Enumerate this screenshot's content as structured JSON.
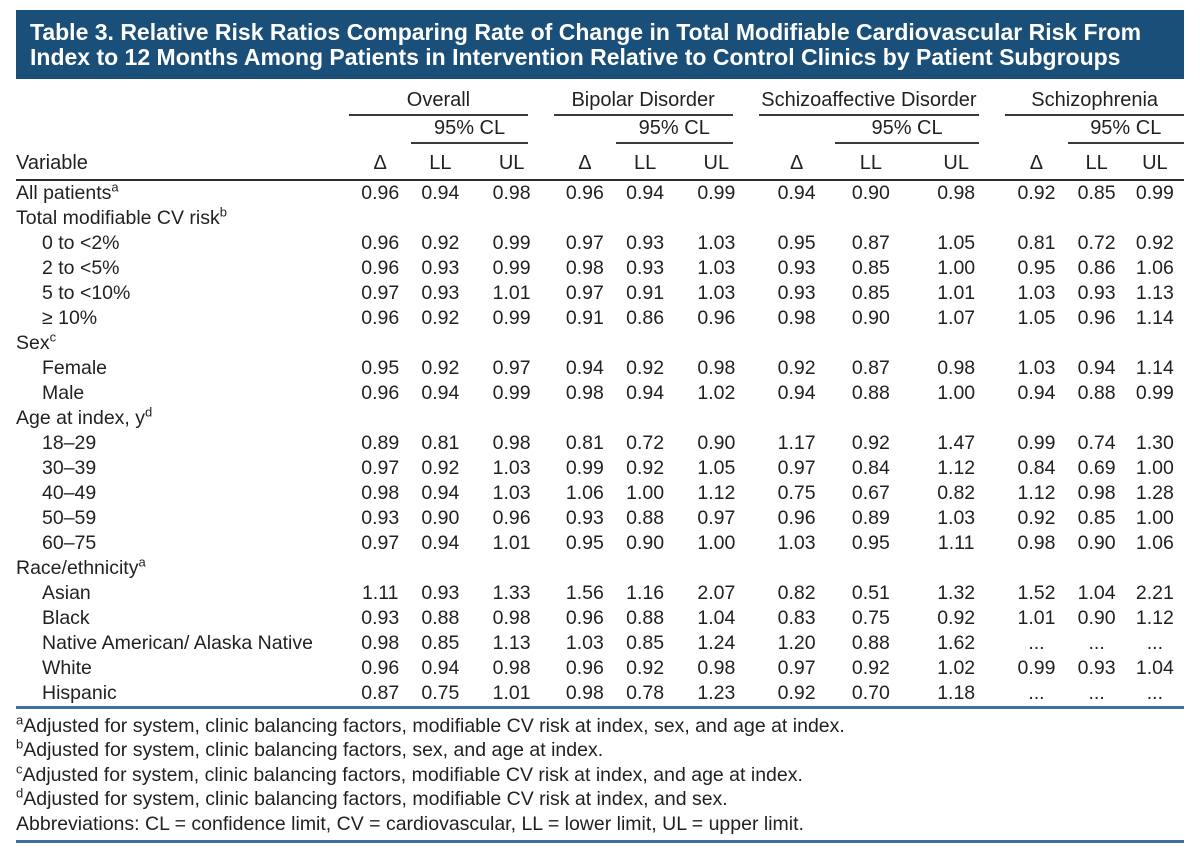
{
  "title": {
    "line1": "Table 3. Relative Risk Ratios Comparing Rate of Change in Total Modifiable Cardiovascular Risk From",
    "line2": "Index to 12 Months Among Patients in Intervention Relative to Control Clinics by Patient Subgroups"
  },
  "table": {
    "variable_header": "Variable",
    "groups": [
      "Overall",
      "Bipolar Disorder",
      "Schizoaffective Disorder",
      "Schizophrenia"
    ],
    "cl_header": "95% CL",
    "sub_headers": [
      "Δ",
      "LL",
      "UL"
    ],
    "rows": [
      {
        "label": "All patients",
        "sup": "a",
        "indent": false,
        "values": [
          "0.96",
          "0.94",
          "0.98",
          "0.96",
          "0.94",
          "0.99",
          "0.94",
          "0.90",
          "0.98",
          "0.92",
          "0.85",
          "0.99"
        ]
      },
      {
        "label": "Total modifiable CV risk",
        "sup": "b",
        "indent": false,
        "values": []
      },
      {
        "label": "0 to <2%",
        "sup": "",
        "indent": true,
        "values": [
          "0.96",
          "0.92",
          "0.99",
          "0.97",
          "0.93",
          "1.03",
          "0.95",
          "0.87",
          "1.05",
          "0.81",
          "0.72",
          "0.92"
        ]
      },
      {
        "label": "2 to <5%",
        "sup": "",
        "indent": true,
        "values": [
          "0.96",
          "0.93",
          "0.99",
          "0.98",
          "0.93",
          "1.03",
          "0.93",
          "0.85",
          "1.00",
          "0.95",
          "0.86",
          "1.06"
        ]
      },
      {
        "label": "5 to <10%",
        "sup": "",
        "indent": true,
        "values": [
          "0.97",
          "0.93",
          "1.01",
          "0.97",
          "0.91",
          "1.03",
          "0.93",
          "0.85",
          "1.01",
          "1.03",
          "0.93",
          "1.13"
        ]
      },
      {
        "label": "≥ 10%",
        "sup": "",
        "indent": true,
        "values": [
          "0.96",
          "0.92",
          "0.99",
          "0.91",
          "0.86",
          "0.96",
          "0.98",
          "0.90",
          "1.07",
          "1.05",
          "0.96",
          "1.14"
        ]
      },
      {
        "label": "Sex",
        "sup": "c",
        "indent": false,
        "values": []
      },
      {
        "label": "Female",
        "sup": "",
        "indent": true,
        "values": [
          "0.95",
          "0.92",
          "0.97",
          "0.94",
          "0.92",
          "0.98",
          "0.92",
          "0.87",
          "0.98",
          "1.03",
          "0.94",
          "1.14"
        ]
      },
      {
        "label": "Male",
        "sup": "",
        "indent": true,
        "values": [
          "0.96",
          "0.94",
          "0.99",
          "0.98",
          "0.94",
          "1.02",
          "0.94",
          "0.88",
          "1.00",
          "0.94",
          "0.88",
          "0.99"
        ]
      },
      {
        "label": "Age at index, y",
        "sup": "d",
        "indent": false,
        "values": []
      },
      {
        "label": "18–29",
        "sup": "",
        "indent": true,
        "values": [
          "0.89",
          "0.81",
          "0.98",
          "0.81",
          "0.72",
          "0.90",
          "1.17",
          "0.92",
          "1.47",
          "0.99",
          "0.74",
          "1.30"
        ]
      },
      {
        "label": "30–39",
        "sup": "",
        "indent": true,
        "values": [
          "0.97",
          "0.92",
          "1.03",
          "0.99",
          "0.92",
          "1.05",
          "0.97",
          "0.84",
          "1.12",
          "0.84",
          "0.69",
          "1.00"
        ]
      },
      {
        "label": "40–49",
        "sup": "",
        "indent": true,
        "values": [
          "0.98",
          "0.94",
          "1.03",
          "1.06",
          "1.00",
          "1.12",
          "0.75",
          "0.67",
          "0.82",
          "1.12",
          "0.98",
          "1.28"
        ]
      },
      {
        "label": "50–59",
        "sup": "",
        "indent": true,
        "values": [
          "0.93",
          "0.90",
          "0.96",
          "0.93",
          "0.88",
          "0.97",
          "0.96",
          "0.89",
          "1.03",
          "0.92",
          "0.85",
          "1.00"
        ]
      },
      {
        "label": "60–75",
        "sup": "",
        "indent": true,
        "values": [
          "0.97",
          "0.94",
          "1.01",
          "0.95",
          "0.90",
          "1.00",
          "1.03",
          "0.95",
          "1.11",
          "0.98",
          "0.90",
          "1.06"
        ]
      },
      {
        "label": "Race/ethnicity",
        "sup": "a",
        "indent": false,
        "values": []
      },
      {
        "label": "Asian",
        "sup": "",
        "indent": true,
        "values": [
          "1.11",
          "0.93",
          "1.33",
          "1.56",
          "1.16",
          "2.07",
          "0.82",
          "0.51",
          "1.32",
          "1.52",
          "1.04",
          "2.21"
        ]
      },
      {
        "label": "Black",
        "sup": "",
        "indent": true,
        "values": [
          "0.93",
          "0.88",
          "0.98",
          "0.96",
          "0.88",
          "1.04",
          "0.83",
          "0.75",
          "0.92",
          "1.01",
          "0.90",
          "1.12"
        ]
      },
      {
        "label": "Native American/ Alaska Native",
        "sup": "",
        "indent": true,
        "values": [
          "0.98",
          "0.85",
          "1.13",
          "1.03",
          "0.85",
          "1.24",
          "1.20",
          "0.88",
          "1.62",
          "...",
          "...",
          "..."
        ]
      },
      {
        "label": "White",
        "sup": "",
        "indent": true,
        "values": [
          "0.96",
          "0.94",
          "0.98",
          "0.96",
          "0.92",
          "0.98",
          "0.97",
          "0.92",
          "1.02",
          "0.99",
          "0.93",
          "1.04"
        ]
      },
      {
        "label": "Hispanic",
        "sup": "",
        "indent": true,
        "values": [
          "0.87",
          "0.75",
          "1.01",
          "0.98",
          "0.78",
          "1.23",
          "0.92",
          "0.70",
          "1.18",
          "...",
          "...",
          "..."
        ]
      }
    ]
  },
  "footnotes": [
    {
      "marker": "a",
      "text": "Adjusted for system, clinic balancing factors, modifiable CV risk at index, sex, and age at index."
    },
    {
      "marker": "b",
      "text": "Adjusted for system, clinic balancing factors, sex, and age at index."
    },
    {
      "marker": "c",
      "text": "Adjusted for system, clinic balancing factors, modifiable CV risk at index, and age at index."
    },
    {
      "marker": "d",
      "text": "Adjusted for system, clinic balancing factors, modifiable CV risk at index, and sex."
    },
    {
      "marker": "",
      "text": "Abbreviations: CL = confidence limit, CV = cardiovascular, LL = lower limit, UL = upper limit."
    }
  ],
  "colors": {
    "title_bar": "#1a4f7a",
    "title_text": "#ffffff",
    "body_text": "#231f20",
    "table_rule": "#2b2b2b",
    "accent_rule": "#3e6f9e"
  }
}
